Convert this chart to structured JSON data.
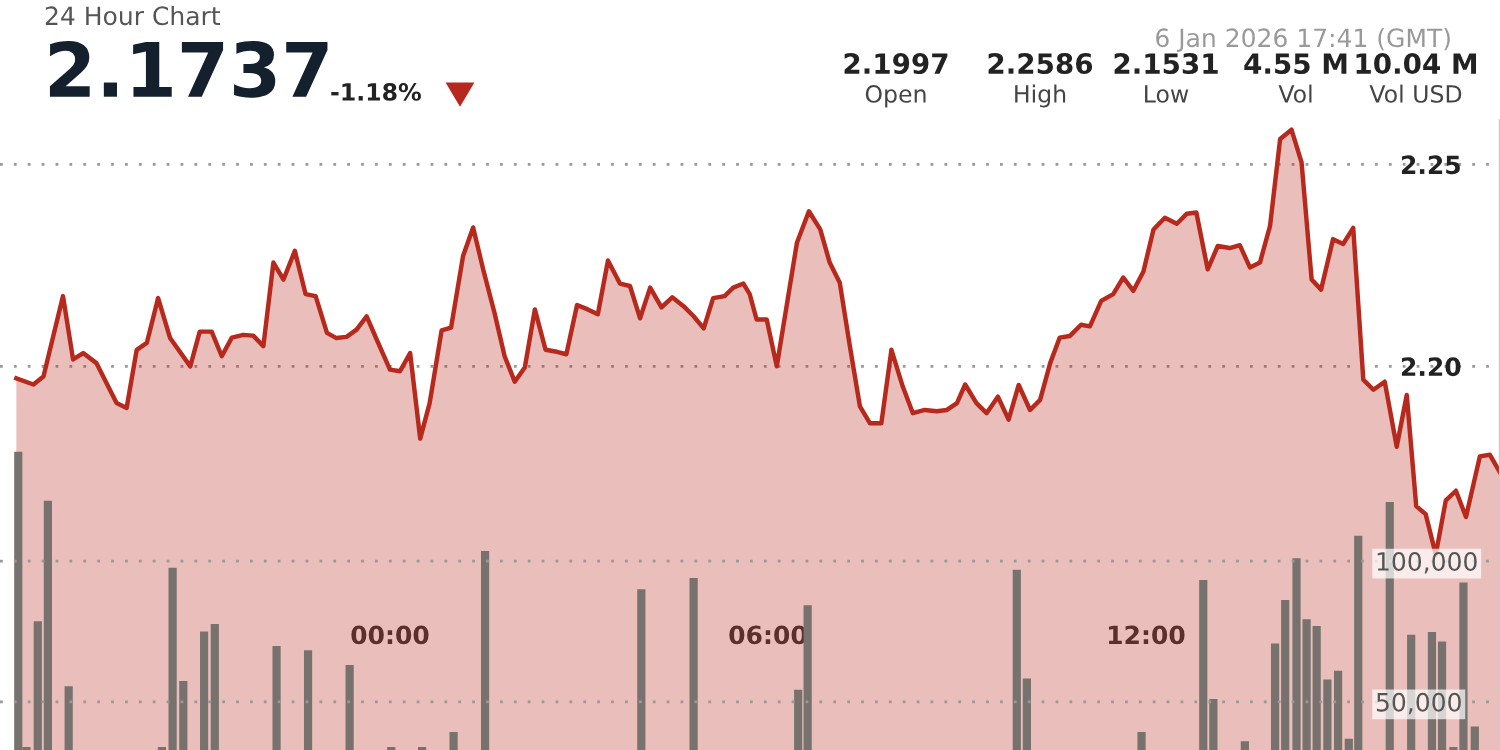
{
  "chart_data": {
    "type": "area",
    "title": "24 Hour Chart",
    "annotations": [
      "2.1737",
      "-1.18%",
      "6 Jan 2026 17:41 (GMT)",
      "2.1997",
      "Open",
      "2.2586",
      "High",
      "2.1531",
      "Low",
      "4.55 M",
      "Vol",
      "10.04 M",
      "Vol USD"
    ],
    "xlim": [
      -6.19,
      17.62
    ],
    "xticks": [
      {
        "value": 0,
        "label": "00:00"
      },
      {
        "value": 6,
        "label": "06:00"
      },
      {
        "value": 12,
        "label": "12:00"
      }
    ],
    "ylim": [
      2.105,
      2.261
    ],
    "yticks": [
      {
        "value": 2.2,
        "label": "2.20"
      },
      2.25
    ],
    "y2lim": [
      32900,
      256600
    ],
    "y2ticks": [
      {
        "value": 50000,
        "label": "50,000"
      },
      {
        "value": 100000,
        "label": "100,000"
      }
    ],
    "grid": "y",
    "series": [
      {
        "color": "#b8291d",
        "x": [
          -5.93,
          -5.66,
          -5.5,
          -5.19,
          -5.03,
          -4.87,
          -4.66,
          -4.34,
          -4.18,
          -4.02,
          -3.86,
          -3.68,
          -3.49,
          -3.17,
          -3.02,
          -2.83,
          -2.67,
          -2.51,
          -2.33,
          -2.17,
          -2.01,
          -1.85,
          -1.69,
          -1.51,
          -1.34,
          -1.18,
          -1.0,
          -0.85,
          -0.69,
          -0.53,
          -0.37,
          -0.21,
          0.0,
          0.16,
          0.32,
          0.48,
          0.63,
          0.82,
          0.97,
          1.16,
          1.32,
          1.48,
          1.66,
          1.82,
          1.98,
          2.14,
          2.3,
          2.47,
          2.65,
          2.8,
          2.97,
          3.14,
          3.3,
          3.46,
          3.65,
          3.81,
          3.97,
          4.13,
          4.31,
          4.48,
          4.66,
          4.82,
          4.98,
          5.13,
          5.31,
          5.45,
          5.61,
          5.71,
          5.82,
          5.98,
          6.14,
          6.46,
          6.65,
          6.83,
          6.98,
          7.14,
          7.3,
          7.46,
          7.62,
          7.8,
          7.96,
          8.14,
          8.3,
          8.49,
          8.68,
          8.84,
          9.0,
          9.13,
          9.31,
          9.47,
          9.65,
          9.82,
          9.98,
          10.16,
          10.32,
          10.48,
          10.63,
          10.79,
          10.97,
          11.11,
          11.29,
          11.48,
          11.64,
          11.8,
          11.96,
          12.12,
          12.3,
          12.49,
          12.65,
          12.8,
          12.98,
          13.14,
          13.33,
          13.49,
          13.65,
          13.81,
          13.97,
          14.13,
          14.31,
          14.47,
          14.63,
          14.78,
          14.97,
          15.13,
          15.29,
          15.45,
          15.61,
          15.79,
          15.98,
          16.14,
          16.29,
          16.44,
          16.6,
          16.76,
          16.92,
          17.08,
          17.3,
          17.46,
          17.62
        ],
        "values": [
          2.197,
          2.1955,
          2.1975,
          2.2174,
          2.2017,
          2.2033,
          2.2008,
          2.1909,
          2.1897,
          2.2041,
          2.2058,
          2.2169,
          2.207,
          2.2,
          2.2086,
          2.2086,
          2.2025,
          2.2071,
          2.2078,
          2.2076,
          2.205,
          2.2257,
          2.2215,
          2.2286,
          2.2179,
          2.2174,
          2.2083,
          2.207,
          2.2073,
          2.2091,
          2.2124,
          2.2066,
          2.1992,
          2.1988,
          2.2033,
          2.1821,
          2.1909,
          2.2089,
          2.2096,
          2.2273,
          2.2344,
          2.224,
          2.2132,
          2.2025,
          2.1962,
          2.1997,
          2.2141,
          2.2041,
          2.2036,
          2.203,
          2.2152,
          2.2141,
          2.2129,
          2.2262,
          2.2205,
          2.2199,
          2.2119,
          2.2195,
          2.2146,
          2.2171,
          2.2149,
          2.2124,
          2.2094,
          2.2169,
          2.2174,
          2.2195,
          2.2205,
          2.2179,
          2.2116,
          2.2116,
          2.2,
          2.2306,
          2.2384,
          2.2339,
          2.2257,
          2.2207,
          2.205,
          2.1901,
          2.1859,
          2.1859,
          2.2041,
          2.195,
          2.1884,
          2.1892,
          2.1889,
          2.1892,
          2.1909,
          2.1955,
          2.1909,
          2.1884,
          2.1925,
          2.1868,
          2.1954,
          2.1892,
          2.1917,
          2.2008,
          2.2071,
          2.2075,
          2.2103,
          2.2099,
          2.2162,
          2.2179,
          2.222,
          2.2187,
          2.2235,
          2.2339,
          2.2368,
          2.2353,
          2.2378,
          2.2381,
          2.224,
          2.2298,
          2.2293,
          2.23,
          2.2245,
          2.2257,
          2.2348,
          2.2563,
          2.2586,
          2.2505,
          2.2215,
          2.219,
          2.2315,
          2.2303,
          2.2343,
          2.1967,
          2.1942,
          2.1962,
          2.1801,
          2.1929,
          2.1654,
          2.1634,
          2.1534,
          2.1668,
          2.1692,
          2.1627,
          2.1777,
          2.1781,
          2.1737
        ]
      },
      {
        "type": "bar",
        "axis": "y2",
        "color": "#77726d",
        "x": [
          -5.9,
          -5.77,
          -5.59,
          -5.43,
          -5.1,
          -3.62,
          -3.45,
          -3.28,
          -2.95,
          -2.78,
          -1.8,
          -1.3,
          -0.64,
          0.02,
          0.51,
          1.01,
          1.51,
          3.99,
          4.82,
          6.48,
          6.63,
          9.95,
          10.11,
          11.24,
          11.93,
          12.91,
          13.07,
          13.57,
          14.05,
          14.21,
          14.39,
          14.55,
          14.71,
          14.88,
          15.05,
          15.22,
          15.37,
          15.87,
          16.21,
          16.54,
          16.7,
          16.88,
          17.04,
          17.22
        ],
        "values": [
          138800,
          34000,
          78600,
          121400,
          55500,
          34000,
          97600,
          57400,
          75000,
          77600,
          69800,
          68300,
          63100,
          34000,
          34000,
          39300,
          103600,
          90000,
          94000,
          54300,
          84300,
          96900,
          58300,
          null,
          39300,
          93300,
          51000,
          36000,
          70700,
          86200,
          101000,
          79300,
          76900,
          57900,
          61000,
          36900,
          109000,
          121000,
          73800,
          74800,
          71400,
          34000,
          92400,
          41200
        ]
      }
    ]
  }
}
